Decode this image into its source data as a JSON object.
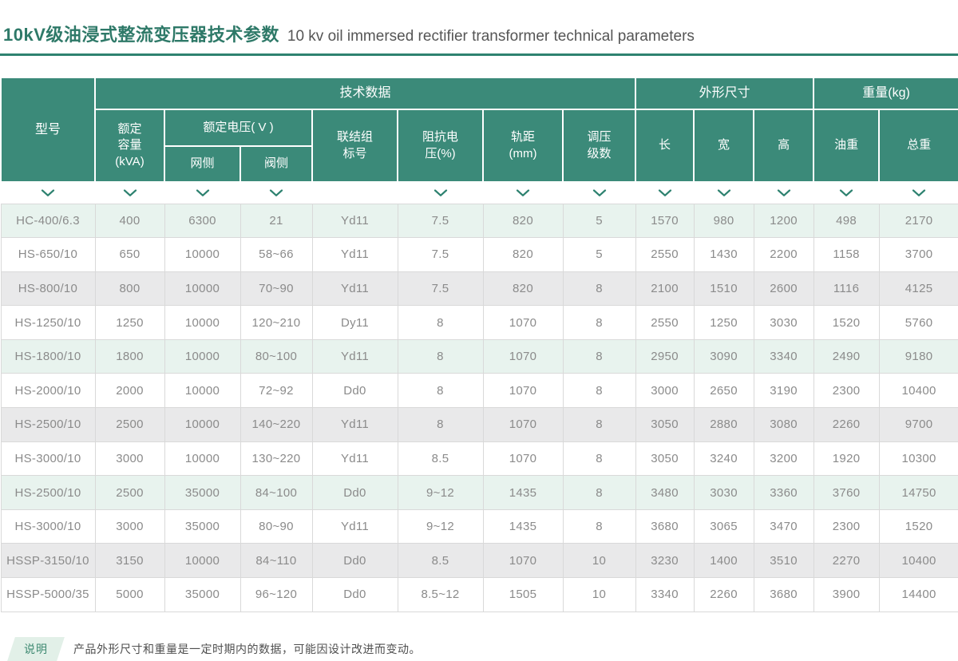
{
  "page": {
    "title_zh": "10kV级油浸式整流变压器技术参数",
    "title_en": "10 kv oil immersed rectifier transformer technical parameters"
  },
  "colors": {
    "header_bg": "#3b8a79",
    "accent_green": "#2e8270",
    "title_green": "#2e7968",
    "row_green_tint": "#e8f3ee",
    "row_gray_tint": "#e9e9ea",
    "cell_text": "#8b8b8b"
  },
  "table": {
    "groups": {
      "tech": "技术数据",
      "dims": "外形尺寸",
      "weight": "重量(kg)"
    },
    "headers": {
      "model": "型号",
      "capacity": "额定\n容量\n(kVA)",
      "voltage_group": "额定电压( V )",
      "grid_side": "网侧",
      "valve_side": "阀侧",
      "vector_group": "联结组\n标号",
      "impedance": "阻抗电\n压(%)",
      "gauge": "轨距\n(mm)",
      "tap_steps": "调压\n级数",
      "length": "长",
      "width": "宽",
      "height": "高",
      "oil_weight": "油重",
      "total_weight": "总重"
    },
    "chevrons": [
      true,
      true,
      true,
      true,
      false,
      true,
      true,
      true,
      true,
      true,
      true,
      true,
      true
    ],
    "rows": [
      {
        "model": "HC-400/6.3",
        "tint": "green",
        "values": [
          "400",
          "6300",
          "21",
          "Yd11",
          "7.5",
          "820",
          "5",
          "1570",
          "980",
          "1200",
          "498",
          "2170"
        ]
      },
      {
        "model": "HS-650/10",
        "tint": "white",
        "values": [
          "650",
          "10000",
          "58~66",
          "Yd11",
          "7.5",
          "820",
          "5",
          "2550",
          "1430",
          "2200",
          "1158",
          "3700"
        ]
      },
      {
        "model": "HS-800/10",
        "tint": "gray",
        "values": [
          "800",
          "10000",
          "70~90",
          "Yd11",
          "7.5",
          "820",
          "8",
          "2100",
          "1510",
          "2600",
          "1116",
          "4125"
        ]
      },
      {
        "model": "HS-1250/10",
        "tint": "white",
        "values": [
          "1250",
          "10000",
          "120~210",
          "Dy11",
          "8",
          "1070",
          "8",
          "2550",
          "1250",
          "3030",
          "1520",
          "5760"
        ]
      },
      {
        "model": "HS-1800/10",
        "tint": "green",
        "values": [
          "1800",
          "10000",
          "80~100",
          "Yd11",
          "8",
          "1070",
          "8",
          "2950",
          "3090",
          "3340",
          "2490",
          "9180"
        ]
      },
      {
        "model": "HS-2000/10",
        "tint": "white",
        "values": [
          "2000",
          "10000",
          "72~92",
          "Dd0",
          "8",
          "1070",
          "8",
          "3000",
          "2650",
          "3190",
          "2300",
          "10400"
        ]
      },
      {
        "model": "HS-2500/10",
        "tint": "gray",
        "values": [
          "2500",
          "10000",
          "140~220",
          "Yd11",
          "8",
          "1070",
          "8",
          "3050",
          "2880",
          "3080",
          "2260",
          "9700"
        ]
      },
      {
        "model": "HS-3000/10",
        "tint": "white",
        "values": [
          "3000",
          "10000",
          "130~220",
          "Yd11",
          "8.5",
          "1070",
          "8",
          "3050",
          "3240",
          "3200",
          "1920",
          "10300"
        ]
      },
      {
        "model": "HS-2500/10",
        "tint": "green",
        "values": [
          "2500",
          "35000",
          "84~100",
          "Dd0",
          "9~12",
          "1435",
          "8",
          "3480",
          "3030",
          "3360",
          "3760",
          "14750"
        ]
      },
      {
        "model": "HS-3000/10",
        "tint": "white",
        "values": [
          "3000",
          "35000",
          "80~90",
          "Yd11",
          "9~12",
          "1435",
          "8",
          "3680",
          "3065",
          "3470",
          "2300",
          "1520"
        ]
      },
      {
        "model": "HSSP-3150/10",
        "tint": "gray",
        "values": [
          "3150",
          "10000",
          "84~110",
          "Dd0",
          "8.5",
          "1070",
          "10",
          "3230",
          "1400",
          "3510",
          "2270",
          "10400"
        ]
      },
      {
        "model": "HSSP-5000/35",
        "tint": "white",
        "values": [
          "5000",
          "35000",
          "96~120",
          "Dd0",
          "8.5~12",
          "1505",
          "10",
          "3340",
          "2260",
          "3680",
          "3900",
          "14400"
        ]
      }
    ]
  },
  "footer": {
    "badge": "说明",
    "note": "产品外形尺寸和重量是一定时期内的数据，可能因设计改进而变动。"
  }
}
